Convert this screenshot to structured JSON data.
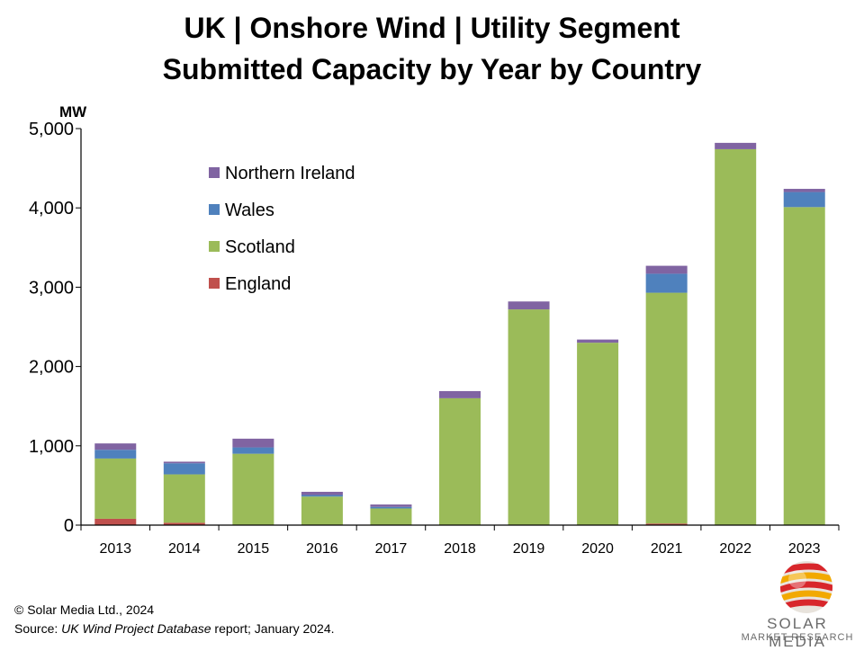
{
  "title_line1": "UK | Onshore Wind | Utility Segment",
  "title_line2": "Submitted Capacity by Year by Country",
  "footer": {
    "copyright": "© Solar Media Ltd., 2024",
    "source_prefix": "Source: ",
    "source_title": "UK Wind Project Database",
    "source_suffix": " report; January 2024."
  },
  "logo": {
    "name": "SOLAR MEDIA",
    "tagline": "MARKET RESEARCH"
  },
  "colors": {
    "England": "#c0504d",
    "Scotland": "#9bbb59",
    "Wales": "#4f81bd",
    "Northern Ireland": "#8064a2"
  },
  "chart_data": {
    "type": "bar",
    "stacked": true,
    "title": "UK | Onshore Wind | Utility Segment Submitted Capacity by Year by Country",
    "ylabel": "MW",
    "xlabel": "",
    "ylim": [
      0,
      5000
    ],
    "yticks": [
      0,
      1000,
      2000,
      3000,
      4000,
      5000
    ],
    "ytick_labels": [
      "0",
      "1,000",
      "2,000",
      "3,000",
      "4,000",
      "5,000"
    ],
    "categories": [
      "2013",
      "2014",
      "2015",
      "2016",
      "2017",
      "2018",
      "2019",
      "2020",
      "2021",
      "2022",
      "2023"
    ],
    "series": [
      {
        "name": "England",
        "values": [
          80,
          30,
          0,
          0,
          0,
          0,
          0,
          0,
          20,
          0,
          0
        ]
      },
      {
        "name": "Scotland",
        "values": [
          760,
          610,
          900,
          360,
          210,
          1600,
          2720,
          2300,
          2910,
          4740,
          4010
        ]
      },
      {
        "name": "Wales",
        "values": [
          110,
          140,
          80,
          20,
          20,
          0,
          0,
          0,
          240,
          0,
          190
        ]
      },
      {
        "name": "Northern Ireland",
        "values": [
          80,
          20,
          110,
          40,
          30,
          90,
          100,
          40,
          100,
          80,
          40
        ]
      }
    ],
    "legend": {
      "placement": "top-left",
      "order": [
        "Northern Ireland",
        "Wales",
        "Scotland",
        "England"
      ]
    }
  }
}
